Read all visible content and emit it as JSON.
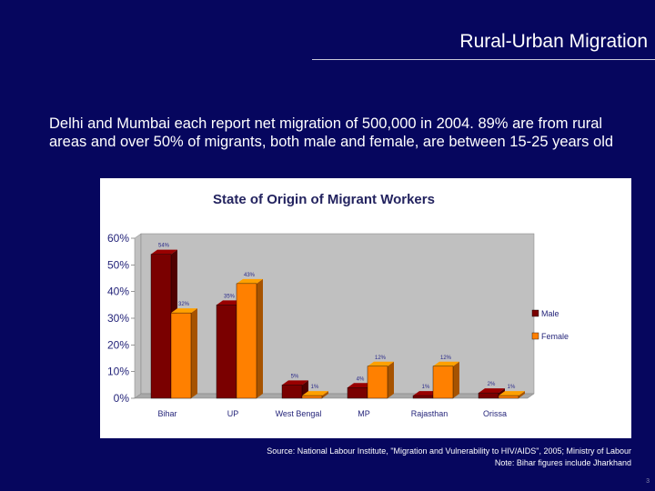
{
  "slide": {
    "title": "Rural-Urban Migration",
    "intro": "Delhi and Mumbai each report net migration of 500,000 in 2004.  89% are from rural areas and over 50% of migrants, both male and female, are between 15-25 years old",
    "source_line1": "Source:  National Labour Institute, \"Migration and Vulnerability to HIV/AIDS\", 2005; Ministry of Labour",
    "source_line2": "Note:  Bihar figures include Jharkhand",
    "page_number": "3"
  },
  "colors": {
    "background": "#06065e",
    "male": "#7a0000",
    "female": "#ff8000"
  },
  "chart_data": {
    "type": "bar",
    "title": "State of Origin of Migrant Workers",
    "xlabel": "",
    "ylabel": "",
    "categories": [
      "Bihar",
      "UP",
      "West Bengal",
      "MP",
      "Rajasthan",
      "Orissa"
    ],
    "series": [
      {
        "name": "Male",
        "values": [
          54,
          35,
          5,
          4,
          1,
          2
        ],
        "labels": [
          "54%",
          "35%",
          "5%",
          "4%",
          "1%",
          "2%"
        ]
      },
      {
        "name": "Female",
        "values": [
          32,
          43,
          1,
          12,
          12,
          1
        ],
        "labels": [
          "32%",
          "43%",
          "1%",
          "12%",
          "12%",
          "1%"
        ]
      }
    ],
    "yticks": [
      "0%",
      "10%",
      "20%",
      "30%",
      "40%",
      "50%",
      "60%"
    ],
    "ylim": [
      0,
      60
    ],
    "grid": false,
    "legend": "right",
    "style": "3d-bar"
  }
}
